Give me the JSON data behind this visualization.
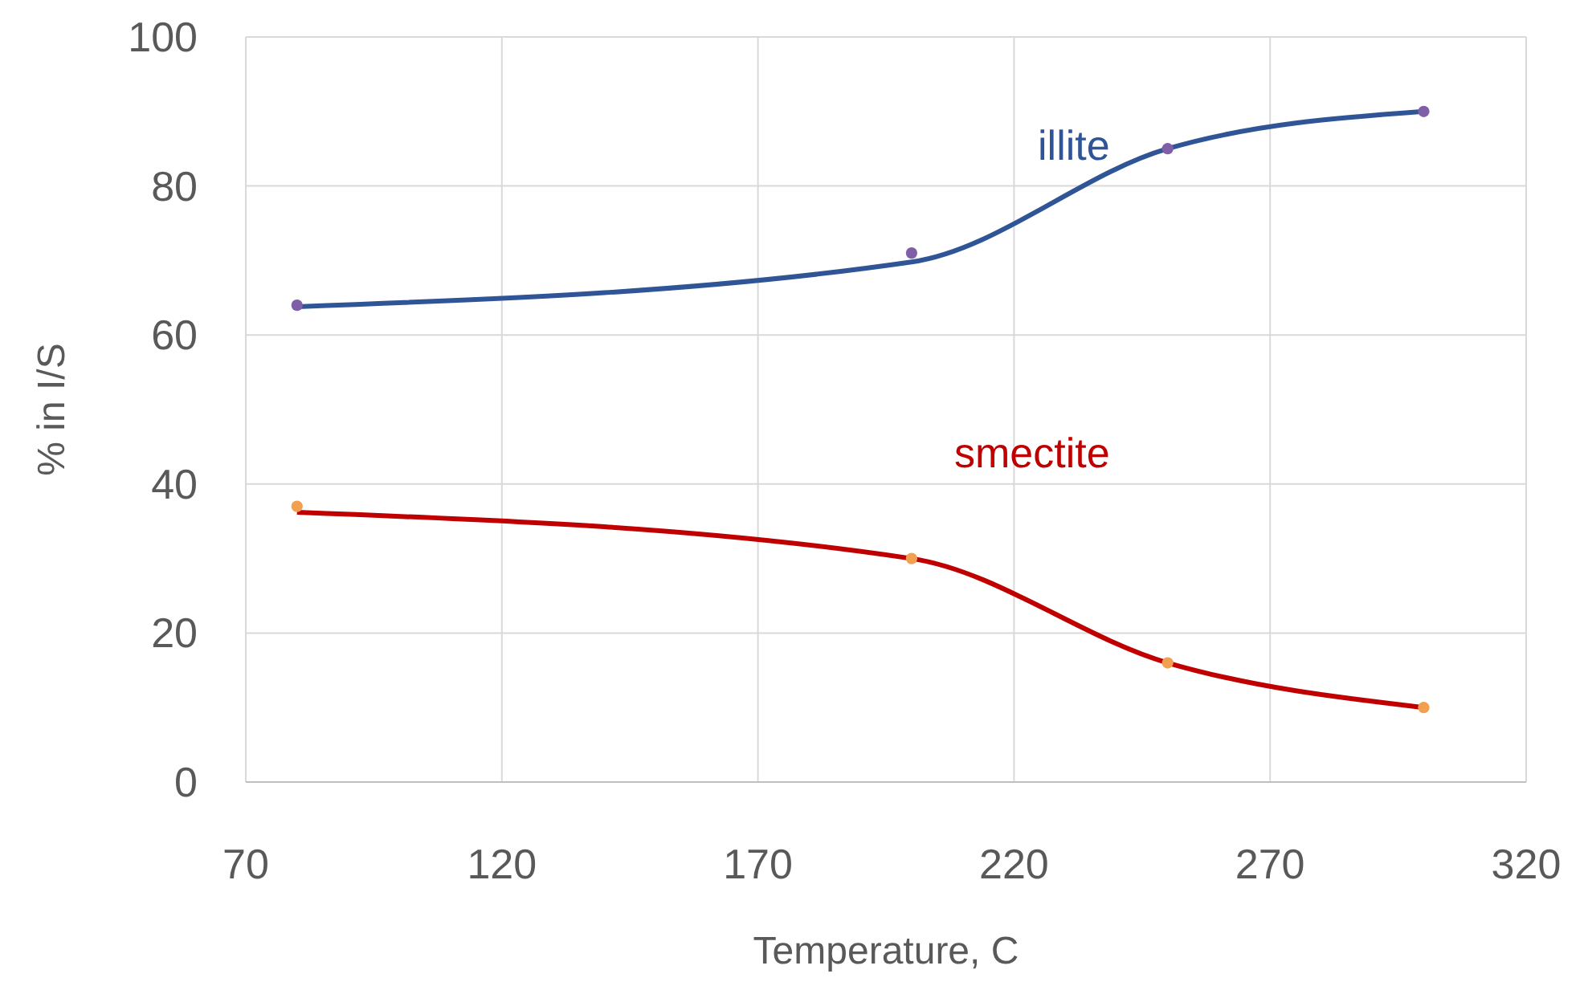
{
  "chart_data": {
    "type": "scatter",
    "xlabel": "Temperature, C",
    "ylabel": "% in I/S",
    "xlim": [
      70,
      320
    ],
    "xticks": [
      70,
      120,
      170,
      220,
      270,
      320
    ],
    "ylim": [
      0,
      100
    ],
    "yticks": [
      0,
      20,
      40,
      60,
      80,
      100
    ],
    "grid": true,
    "marker": "circle",
    "series": [
      {
        "type": "line",
        "name": "illite",
        "color": "#2f5597",
        "x": [
          80,
          200,
          250,
          300
        ],
        "values": [
          63.8,
          69.8,
          85,
          90
        ],
        "marker": "none",
        "line_style": "solid"
      },
      {
        "type": "line",
        "name": "smectite",
        "color": "#c00000",
        "x": [
          80,
          200,
          250,
          300
        ],
        "values": [
          36.2,
          30,
          16,
          10
        ],
        "marker": "none",
        "line_style": "solid"
      },
      {
        "color": "#7f5fa8",
        "x": [
          80,
          200,
          250,
          300
        ],
        "values": [
          64,
          71,
          85,
          90
        ]
      },
      {
        "color": "#f0a050",
        "x": [
          80,
          200,
          250,
          300
        ],
        "values": [
          37,
          30,
          16,
          10
        ]
      }
    ]
  }
}
